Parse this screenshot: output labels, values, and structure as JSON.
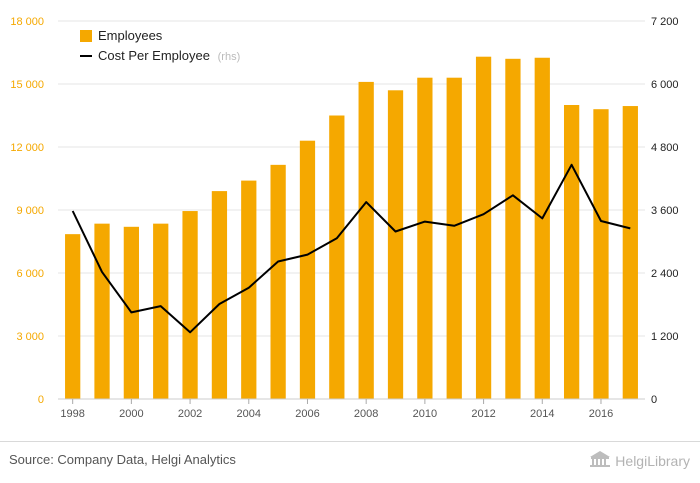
{
  "colors": {
    "bar": "#F5A800",
    "line": "#000000",
    "left_tick": "#F5A800",
    "grid": "#e6e6e6",
    "axis_text": "#555555",
    "rhs_note": "#bbbbbb"
  },
  "legend": {
    "employees_label": "Employees",
    "cost_label": "Cost Per Employee",
    "cost_note": "(rhs)"
  },
  "footer": {
    "source": "Source: Company Data, Helgi Analytics",
    "logo_text": "HelgiLibrary",
    "logo_icon": "library-building-icon"
  },
  "chart_data": {
    "type": "bar",
    "categories": [
      "1998",
      "1999",
      "2000",
      "2001",
      "2002",
      "2003",
      "2004",
      "2005",
      "2006",
      "2007",
      "2008",
      "2009",
      "2010",
      "2011",
      "2012",
      "2013",
      "2014",
      "2015",
      "2016",
      "2017"
    ],
    "x_tick_labels": [
      "1998",
      "2000",
      "2002",
      "2004",
      "2006",
      "2008",
      "2010",
      "2012",
      "2014",
      "2016"
    ],
    "series": [
      {
        "name": "Employees",
        "type": "bar",
        "axis": "left",
        "values": [
          7850,
          8350,
          8200,
          8350,
          8950,
          9900,
          10400,
          11150,
          12300,
          13500,
          15100,
          14700,
          15300,
          15300,
          16300,
          16200,
          16250,
          14000,
          13800,
          13950
        ]
      },
      {
        "name": "Cost Per Employee",
        "type": "line",
        "axis": "right",
        "values": [
          3580,
          2420,
          1650,
          1770,
          1270,
          1810,
          2120,
          2620,
          2750,
          3060,
          3750,
          3190,
          3380,
          3300,
          3520,
          3880,
          3440,
          4460,
          3390,
          3250
        ]
      }
    ],
    "y_left": {
      "min": 0,
      "max": 18000,
      "ticks": [
        0,
        3000,
        6000,
        9000,
        12000,
        15000,
        18000
      ],
      "tick_labels": [
        "0",
        "3 000",
        "6 000",
        "9 000",
        "12 000",
        "15 000",
        "18 000"
      ]
    },
    "y_right": {
      "min": 0,
      "max": 7200,
      "ticks": [
        0,
        1200,
        2400,
        3600,
        4800,
        6000,
        7200
      ],
      "tick_labels": [
        "0",
        "1 200",
        "2 400",
        "3 600",
        "4 800",
        "6 000",
        "7 200"
      ]
    },
    "grid": true,
    "legend_position": "top-left"
  }
}
